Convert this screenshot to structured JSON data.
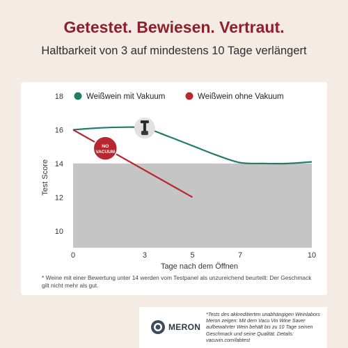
{
  "headline": "Getestet. Bewiesen. Vertraut.",
  "subheadline": "Haltbarkeit von 3 auf mindestens 10 Tage verlängert",
  "footnote": "* Weine mit einer Bewertung unter 14 werden vom Testpanel als unzureichend beurteilt: Der Geschmack gilt nicht mehr als gut.",
  "lab": {
    "name": "MERON",
    "text": "*Tests des akkreditierten unabhängigen Weinlabors Meron zeigen: Mit dem Vacu Vin Wine Saver aufbewahrter Wein behält bis zu 10 Tage seinen Geschmack und seine Qualität. Details: vacuvin.com/labtest"
  },
  "badge_label": [
    "NO",
    "VACUUM"
  ],
  "colors": {
    "with_vacuum": "#1f7d68",
    "without_vacuum": "#b8262f",
    "threshold_band": "#c6c5c5",
    "brand": "#8e1f2c"
  },
  "chart_data": {
    "type": "line",
    "xlabel": "Tage nach dem Öffnen",
    "ylabel": "Test Score",
    "xlim": [
      0,
      10
    ],
    "ylim": [
      9,
      18
    ],
    "x_ticks": [
      0,
      3,
      5,
      7,
      10
    ],
    "y_ticks": [
      10,
      12,
      14,
      16,
      18
    ],
    "threshold": 14,
    "legend_position": "top",
    "series": [
      {
        "name": "Weißwein mit Vakuum",
        "color": "#1f7d68",
        "points": [
          [
            0,
            16.0
          ],
          [
            1,
            16.1
          ],
          [
            2,
            16.15
          ],
          [
            3,
            16.1
          ],
          [
            4,
            15.6
          ],
          [
            5,
            15.05
          ],
          [
            6,
            14.5
          ],
          [
            7,
            14.05
          ],
          [
            8,
            14.0
          ],
          [
            9,
            14.0
          ],
          [
            10,
            14.1
          ]
        ]
      },
      {
        "name": "Weißwein ohne Vakuum",
        "color": "#b8262f",
        "points": [
          [
            0,
            16.0
          ],
          [
            5,
            12.0
          ]
        ]
      }
    ]
  }
}
